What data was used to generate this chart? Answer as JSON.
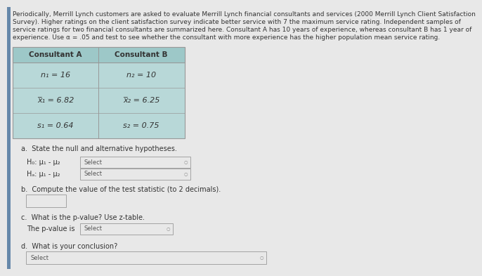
{
  "page_bg": "#e8e8e8",
  "header_text_lines": [
    "Periodically, Merrill Lynch customers are asked to evaluate Merrill Lynch financial consultants and services (2000 Merrill Lynch Client Satisfaction",
    "Survey). Higher ratings on the client satisfaction survey indicate better service with 7 the maximum service rating. Independent samples of",
    "service ratings for two financial consultants are summarized here. Consultant A has 10 years of experience, whereas consultant B has 1 year of",
    "experience. Use α = .05 and test to see whether the consultant with more experience has the higher population mean service rating."
  ],
  "table_bg": "#b8d8d8",
  "table_header_bg": "#9dc8c8",
  "col_a_header": "Consultant A",
  "col_b_header": "Consultant B",
  "row_a": [
    "n₁ = 16",
    "n₂ = 10"
  ],
  "row_b": [
    "x̅₁ = 6.82",
    "x̅₂ = 6.25"
  ],
  "row_c": [
    "s₁ = 0.64",
    "s₂ = 0.75"
  ],
  "section_a": "a.  State the null and alternative hypotheses.",
  "h0_label": "H₀: μ₁ - μ₂",
  "ha_label": "Hₐ: μ₁ - μ₂",
  "select_text": "Select",
  "section_b": "b.  Compute the value of the test statistic (to 2 decimals).",
  "section_c": "c.  What is the p-value? Use z-table.",
  "pvalue_prefix": "The p-value is",
  "section_d": "d.  What is your conclusion?",
  "text_color": "#333333",
  "box_fill": "#e8e8e8",
  "box_border": "#999999",
  "left_bar_color": "#6688aa",
  "header_fontsize": 6.5,
  "body_fontsize": 7.0,
  "table_fontsize": 7.5
}
